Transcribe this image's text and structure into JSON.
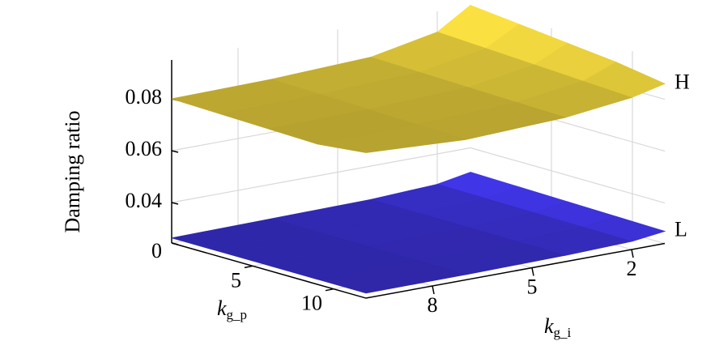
{
  "chart_data": {
    "type": "surface",
    "zlabel": "Damping ratio",
    "xlabel": "k",
    "xlabel_sub": "g_p",
    "ylabel": "k",
    "ylabel_sub": "g_i",
    "x": [
      0,
      3,
      6,
      9,
      12
    ],
    "y": [
      1,
      2,
      4,
      7,
      10
    ],
    "xlim": [
      0,
      12
    ],
    "ylim": [
      1,
      10
    ],
    "zlim": [
      0,
      0.095
    ],
    "xticks": [
      5,
      10
    ],
    "yticks": [
      8,
      5,
      2
    ],
    "zticks": [
      0,
      0.04,
      0.06,
      0.08
    ],
    "grid": true,
    "series": [
      {
        "name": "L",
        "color": "#3a30d0",
        "values": [
          [
            0.016,
            0.015,
            0.014,
            0.013,
            0.012
          ],
          [
            0.01,
            0.0095,
            0.009,
            0.0085,
            0.008
          ],
          [
            0.007,
            0.0068,
            0.0066,
            0.0064,
            0.0062
          ],
          [
            0.006,
            0.0058,
            0.0056,
            0.0054,
            0.0052
          ],
          [
            0.005,
            0.005,
            0.005,
            0.005,
            0.005
          ]
        ]
      },
      {
        "name": "H",
        "color": "#e0c83a",
        "values": [
          [
            0.095,
            0.093,
            0.091,
            0.089,
            0.086
          ],
          [
            0.087,
            0.086,
            0.085,
            0.084,
            0.083
          ],
          [
            0.082,
            0.0815,
            0.081,
            0.0805,
            0.08
          ],
          [
            0.0805,
            0.08,
            0.0795,
            0.079,
            0.0785
          ],
          [
            0.08,
            0.0795,
            0.079,
            0.0785,
            0.0805
          ]
        ]
      }
    ]
  }
}
